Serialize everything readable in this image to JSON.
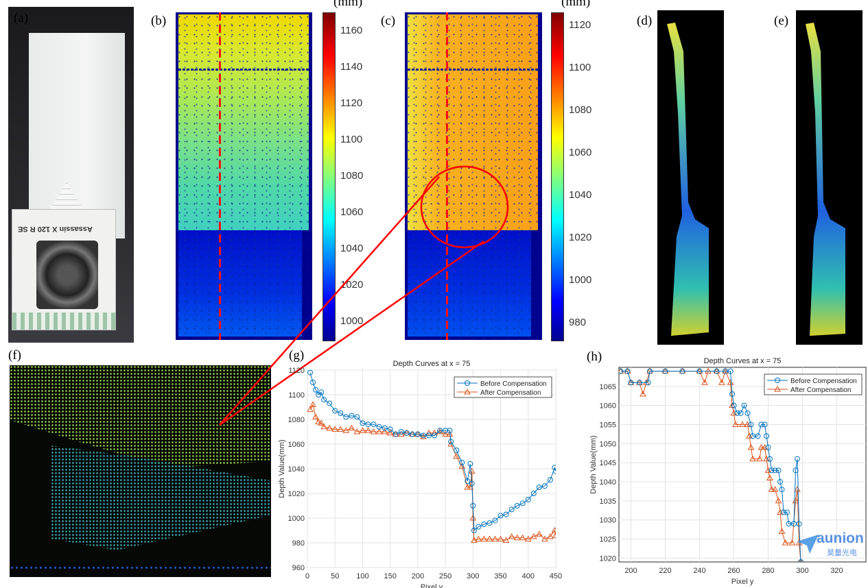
{
  "panels": {
    "a": "(a)",
    "b": "(b)",
    "c": "(c)",
    "d": "(d)",
    "e": "(e)",
    "f": "(f)",
    "g": "(g)",
    "h": "(h)"
  },
  "photo": {
    "box_text": "Assassin X 120 R SE"
  },
  "colorbar_b": {
    "unit": "(mm)",
    "ticks": [
      "1160",
      "1140",
      "1120",
      "1100",
      "1080",
      "1060",
      "1040",
      "1020",
      "1000"
    ],
    "range": [
      990,
      1170
    ]
  },
  "colorbar_c": {
    "unit": "(mm)",
    "ticks": [
      "1120",
      "1100",
      "1080",
      "1060",
      "1040",
      "1020",
      "1000",
      "980"
    ],
    "range": [
      972,
      1126
    ]
  },
  "colors": {
    "before": "#0072bd",
    "after": "#d95319",
    "annotation": "#ff0000"
  },
  "watermark": {
    "brand": "aunion",
    "sub": "昊量光电"
  },
  "chart_data": [
    {
      "type": "line",
      "title": "Depth Curves at x = 75",
      "xlabel": "Pixel y",
      "ylabel": "Depth Value(mm)",
      "xlim": [
        0,
        450
      ],
      "ylim": [
        960,
        1120
      ],
      "xticks": [
        "0",
        "50",
        "100",
        "150",
        "200",
        "250",
        "300",
        "350",
        "400",
        "450"
      ],
      "yticks": [
        "960",
        "980",
        "1000",
        "1020",
        "1040",
        "1060",
        "1080",
        "1100",
        "1120"
      ],
      "grid": true,
      "legend": "top-right",
      "x": [
        5,
        10,
        15,
        20,
        25,
        30,
        40,
        50,
        60,
        70,
        80,
        90,
        100,
        110,
        120,
        130,
        140,
        150,
        160,
        170,
        180,
        190,
        200,
        210,
        220,
        230,
        240,
        250,
        258,
        260,
        270,
        280,
        290,
        295,
        298,
        300,
        302,
        310,
        320,
        330,
        340,
        350,
        360,
        370,
        380,
        390,
        400,
        410,
        420,
        430,
        440,
        448,
        450
      ],
      "series": [
        {
          "name": "Before Compensation",
          "marker": "circle",
          "values": [
            1118,
            1110,
            1104,
            1100,
            1102,
            1096,
            1093,
            1087,
            1085,
            1082,
            1083,
            1082,
            1077,
            1076,
            1076,
            1074,
            1073,
            1072,
            1068,
            1070,
            1069,
            1068,
            1068,
            1067,
            1067,
            1067,
            1071,
            1071,
            1071,
            1062,
            1055,
            1045,
            1030,
            1044,
            1028,
            1010,
            990,
            993,
            995,
            996,
            998,
            1002,
            1003,
            1007,
            1010,
            1012,
            1015,
            1020,
            1025,
            1026,
            1031,
            1041,
            1038
          ]
        },
        {
          "name": "After Compensation",
          "marker": "triangle",
          "values": [
            1088,
            1092,
            1082,
            1078,
            1077,
            1074,
            1073,
            1072,
            1072,
            1071,
            1073,
            1070,
            1071,
            1071,
            1070,
            1070,
            1070,
            1069,
            1068,
            1068,
            1069,
            1068,
            1068,
            1066,
            1069,
            1069,
            1070,
            1068,
            1068,
            1060,
            1050,
            1042,
            1025,
            1025,
            1038,
            1000,
            982,
            983,
            983,
            983,
            983,
            983,
            982,
            985,
            984,
            984,
            983,
            985,
            987,
            983,
            985,
            990,
            986
          ]
        }
      ]
    },
    {
      "type": "line",
      "title": "Depth Curves at x = 75",
      "xlabel": "Pixel y",
      "ylabel": "Depth Value(mm)",
      "xlim": [
        193,
        337
      ],
      "ylim": [
        1019,
        1070
      ],
      "xticks": [
        "200",
        "220",
        "240",
        "260",
        "280",
        "300",
        "320"
      ],
      "yticks": [
        "1020",
        "1025",
        "1030",
        "1035",
        "1040",
        "1045",
        "1050",
        "1055",
        "1060",
        "1065"
      ],
      "grid": true,
      "legend": "top-right",
      "series": [
        {
          "name": "Before Compensation",
          "marker": "circle",
          "x": [
            194,
            198,
            200,
            205,
            210,
            211,
            220,
            230,
            240,
            250,
            255,
            258,
            259,
            260,
            262,
            264,
            266,
            268,
            270,
            271,
            274,
            276,
            278,
            279,
            280,
            281,
            282,
            284,
            286,
            287,
            288,
            289,
            291,
            292,
            295,
            296,
            297,
            298,
            299
          ],
          "values": [
            1069,
            1069,
            1066,
            1066,
            1066,
            1069,
            1069,
            1069,
            1069,
            1069,
            1069,
            1069,
            1063,
            1060,
            1058,
            1058,
            1060,
            1058,
            1055,
            1052,
            1052,
            1055,
            1055,
            1052,
            1049,
            1046,
            1043,
            1043,
            1043,
            1040,
            1038,
            1032,
            1032,
            1029,
            1029,
            1043,
            1046,
            1029,
            1019
          ]
        },
        {
          "name": "After Compensation",
          "marker": "triangle",
          "x": [
            194,
            198,
            200,
            205,
            207,
            209,
            211,
            220,
            230,
            240,
            243,
            245,
            250,
            253,
            255,
            258,
            259,
            260,
            261,
            265,
            268,
            269,
            270,
            271,
            275,
            276,
            278,
            279,
            280,
            281,
            282,
            284,
            286,
            287,
            288,
            290,
            294,
            296,
            297,
            298,
            299
          ],
          "values": [
            1069,
            1069,
            1066,
            1066,
            1063,
            1066,
            1069,
            1069,
            1069,
            1069,
            1066,
            1069,
            1069,
            1066,
            1069,
            1066,
            1060,
            1058,
            1055,
            1055,
            1055,
            1052,
            1049,
            1046,
            1046,
            1049,
            1049,
            1046,
            1043,
            1041,
            1038,
            1038,
            1035,
            1032,
            1027,
            1024,
            1024,
            1035,
            1038,
            1024,
            1019
          ]
        }
      ]
    }
  ]
}
